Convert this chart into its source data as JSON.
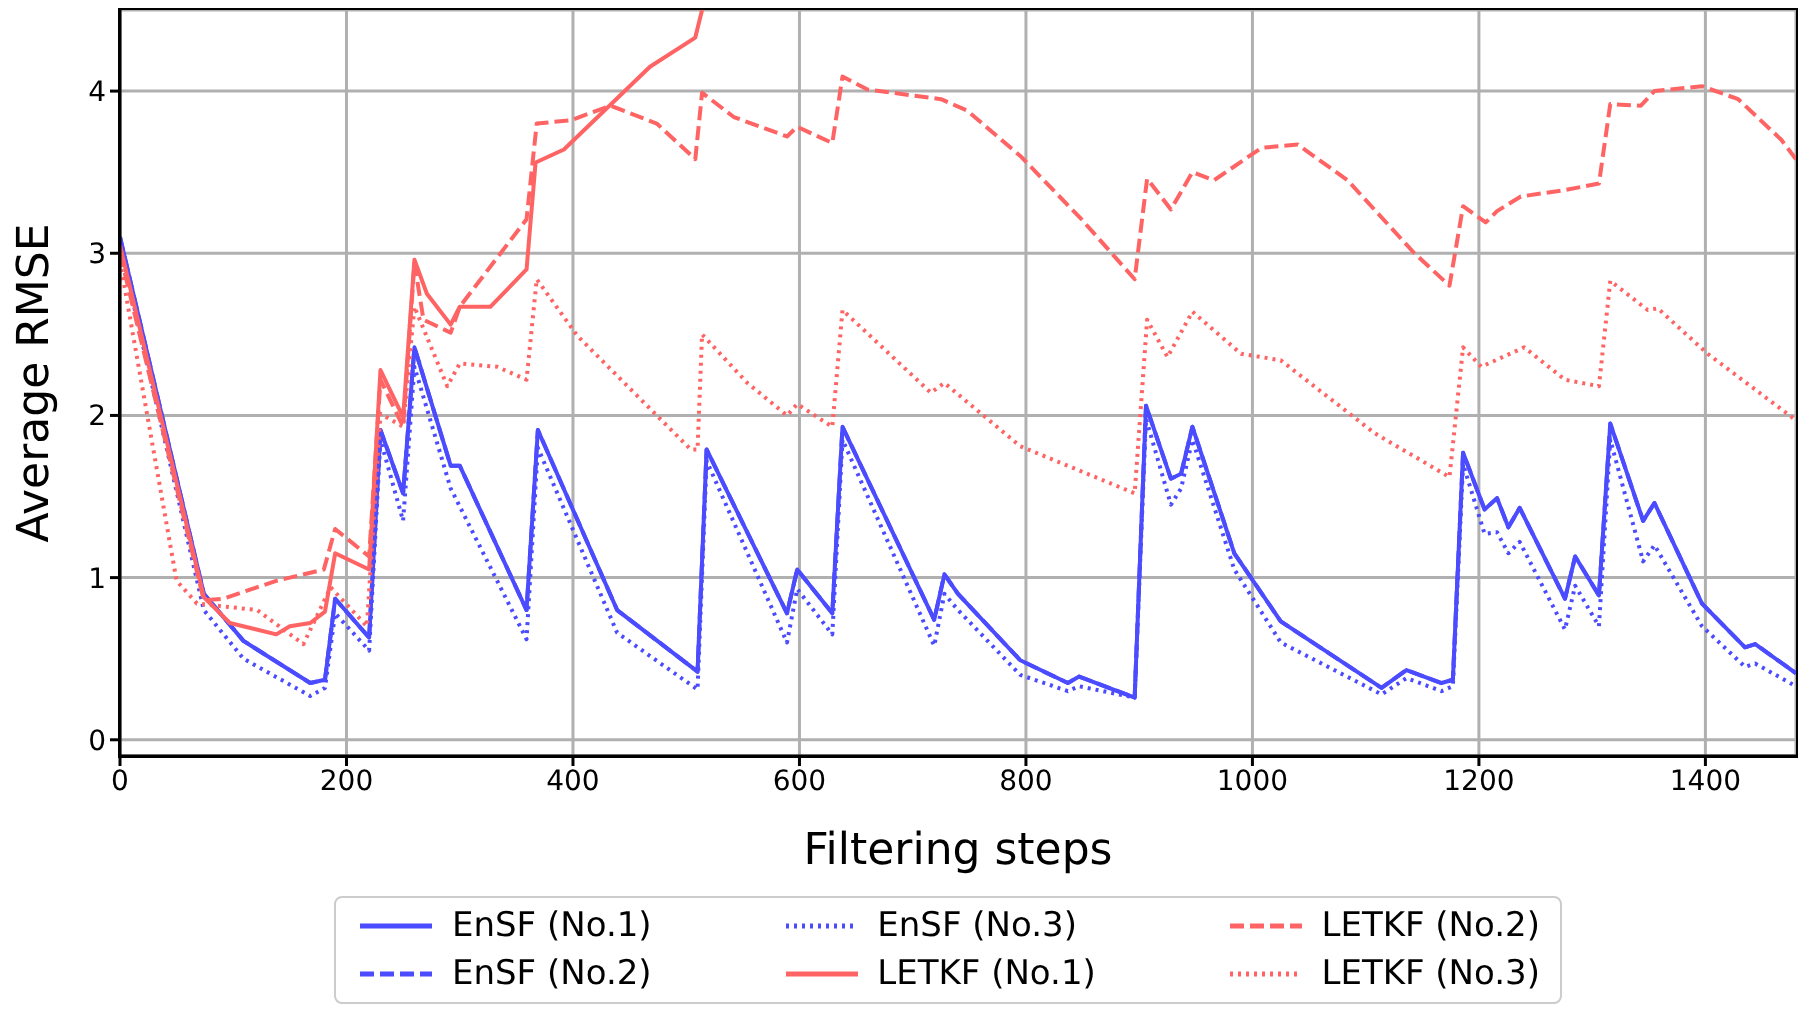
{
  "chart_data": {
    "type": "line",
    "xlabel": "Filtering steps",
    "ylabel": "Average RMSE",
    "xlim": [
      0,
      1480
    ],
    "xticks": [
      0,
      200,
      400,
      600,
      800,
      1000,
      1200,
      1400
    ],
    "ylim": [
      -0.1,
      4.5
    ],
    "yticks": [
      0,
      1,
      2,
      3,
      4
    ],
    "grid": true,
    "legend": "bottom",
    "marker": "none",
    "series": [
      {
        "name": "EnSF (No.1)",
        "color": "#4b4bff",
        "line_style": "solid",
        "x": [
          0,
          74,
          109,
          168,
          181,
          190,
          220,
          230,
          250,
          260,
          292,
          300,
          359,
          369,
          439,
          510,
          518,
          589,
          598,
          629,
          638,
          719,
          728,
          740,
          795,
          837,
          847,
          896,
          906,
          928,
          937,
          947,
          984,
          1025,
          1114,
          1136,
          1167,
          1177,
          1186,
          1205,
          1216,
          1226,
          1236,
          1276,
          1285,
          1306,
          1316,
          1345,
          1355,
          1397,
          1435,
          1444,
          1480
        ],
        "values": [
          3.1,
          0.9,
          0.61,
          0.35,
          0.37,
          0.87,
          0.63,
          1.91,
          1.52,
          2.42,
          1.69,
          1.69,
          0.8,
          1.91,
          0.8,
          0.42,
          1.79,
          0.78,
          1.05,
          0.78,
          1.93,
          0.74,
          1.02,
          0.9,
          0.49,
          0.35,
          0.39,
          0.26,
          2.06,
          1.61,
          1.64,
          1.93,
          1.15,
          0.73,
          0.32,
          0.43,
          0.35,
          0.37,
          1.77,
          1.42,
          1.49,
          1.31,
          1.43,
          0.87,
          1.13,
          0.89,
          1.95,
          1.35,
          1.46,
          0.84,
          0.57,
          0.59,
          0.41
        ]
      },
      {
        "name": "EnSF (No.2)",
        "color": "#4b4bff",
        "line_style": "dashed",
        "x": [
          0,
          74,
          109,
          168,
          181,
          190,
          220,
          230,
          250,
          260,
          292,
          300,
          359,
          369,
          439,
          510,
          518,
          589,
          598,
          629,
          638,
          719,
          728,
          740,
          795,
          837,
          847,
          896,
          906,
          928,
          937,
          947,
          984,
          1025,
          1114,
          1136,
          1167,
          1177,
          1186,
          1205,
          1216,
          1226,
          1236,
          1276,
          1285,
          1306,
          1316,
          1345,
          1355,
          1397,
          1435,
          1444,
          1480
        ],
        "values": [
          3.1,
          0.9,
          0.61,
          0.35,
          0.37,
          0.87,
          0.63,
          1.91,
          1.52,
          2.42,
          1.69,
          1.69,
          0.8,
          1.91,
          0.8,
          0.42,
          1.79,
          0.78,
          1.05,
          0.78,
          1.93,
          0.74,
          1.02,
          0.9,
          0.49,
          0.35,
          0.39,
          0.26,
          2.06,
          1.61,
          1.64,
          1.93,
          1.15,
          0.73,
          0.32,
          0.43,
          0.35,
          0.37,
          1.77,
          1.42,
          1.49,
          1.31,
          1.43,
          0.87,
          1.13,
          0.89,
          1.95,
          1.35,
          1.46,
          0.84,
          0.57,
          0.59,
          0.41
        ]
      },
      {
        "name": "EnSF (No.3)",
        "color": "#4b4bff",
        "line_style": "dotted",
        "x": [
          0,
          74,
          109,
          168,
          181,
          190,
          220,
          230,
          250,
          260,
          292,
          359,
          369,
          439,
          510,
          518,
          589,
          598,
          629,
          638,
          719,
          728,
          740,
          795,
          837,
          847,
          896,
          906,
          928,
          937,
          947,
          984,
          1025,
          1114,
          1136,
          1167,
          1177,
          1186,
          1205,
          1216,
          1226,
          1236,
          1276,
          1285,
          1306,
          1316,
          1345,
          1355,
          1397,
          1435,
          1444,
          1480
        ],
        "values": [
          3.05,
          0.8,
          0.5,
          0.27,
          0.32,
          0.78,
          0.55,
          1.85,
          1.35,
          2.3,
          1.55,
          0.62,
          1.8,
          0.66,
          0.31,
          1.72,
          0.6,
          0.93,
          0.65,
          1.85,
          0.58,
          0.9,
          0.8,
          0.4,
          0.3,
          0.33,
          0.26,
          1.98,
          1.45,
          1.55,
          1.85,
          1.05,
          0.6,
          0.28,
          0.38,
          0.3,
          0.33,
          1.7,
          1.27,
          1.28,
          1.15,
          1.22,
          0.68,
          0.95,
          0.7,
          1.85,
          1.1,
          1.2,
          0.7,
          0.45,
          0.47,
          0.33
        ]
      },
      {
        "name": "LETKF (No.1)",
        "color": "#ff6464",
        "line_style": "solid",
        "x": [
          0,
          74,
          97,
          138,
          150,
          168,
          181,
          190,
          220,
          230,
          250,
          260,
          271,
          292,
          300,
          327,
          359,
          367,
          392,
          468,
          508,
          514
        ],
        "values": [
          3.05,
          0.88,
          0.72,
          0.65,
          0.7,
          0.72,
          0.79,
          1.15,
          1.05,
          2.28,
          1.99,
          2.96,
          2.75,
          2.56,
          2.67,
          2.67,
          2.9,
          3.56,
          3.64,
          4.15,
          4.33,
          4.5
        ]
      },
      {
        "name": "LETKF (No.2)",
        "color": "#ff6464",
        "line_style": "dashed",
        "x": [
          0,
          74,
          91,
          138,
          180,
          190,
          220,
          230,
          250,
          260,
          268,
          292,
          300,
          359,
          368,
          398,
          433,
          474,
          508,
          514,
          542,
          589,
          598,
          629,
          638,
          660,
          725,
          748,
          795,
          849,
          896,
          907,
          928,
          947,
          966,
          1008,
          1040,
          1084,
          1143,
          1174,
          1186,
          1206,
          1216,
          1237,
          1276,
          1306,
          1316,
          1343,
          1355,
          1397,
          1429,
          1467,
          1480
        ],
        "values": [
          3.0,
          0.86,
          0.87,
          0.98,
          1.05,
          1.3,
          1.13,
          2.22,
          1.93,
          2.94,
          2.59,
          2.51,
          2.67,
          3.21,
          3.8,
          3.82,
          3.91,
          3.8,
          3.58,
          3.99,
          3.84,
          3.72,
          3.78,
          3.68,
          4.09,
          4.01,
          3.95,
          3.88,
          3.6,
          3.21,
          2.84,
          3.46,
          3.27,
          3.5,
          3.45,
          3.65,
          3.67,
          3.45,
          3.0,
          2.8,
          3.29,
          3.19,
          3.26,
          3.35,
          3.39,
          3.43,
          3.92,
          3.91,
          4.0,
          4.03,
          3.95,
          3.7,
          3.58
        ]
      },
      {
        "name": "LETKF (No.3)",
        "color": "#ff6464",
        "line_style": "dotted",
        "x": [
          0,
          50,
          68,
          121,
          162,
          186,
          218,
          230,
          250,
          260,
          289,
          300,
          333,
          359,
          368,
          404,
          504,
          510,
          514,
          554,
          589,
          598,
          629,
          638,
          716,
          728,
          795,
          896,
          907,
          925,
          947,
          990,
          1025,
          1108,
          1174,
          1186,
          1202,
          1240,
          1276,
          1306,
          1316,
          1349,
          1358,
          1402,
          1480
        ],
        "values": [
          2.95,
          0.98,
          0.84,
          0.8,
          0.59,
          0.94,
          0.7,
          2.01,
          1.93,
          2.67,
          2.18,
          2.32,
          2.3,
          2.22,
          2.84,
          2.49,
          1.79,
          1.79,
          2.5,
          2.2,
          2.0,
          2.07,
          1.93,
          2.65,
          2.14,
          2.2,
          1.81,
          1.52,
          2.59,
          2.36,
          2.64,
          2.38,
          2.34,
          1.89,
          1.62,
          2.42,
          2.3,
          2.42,
          2.22,
          2.18,
          2.83,
          2.65,
          2.66,
          2.38,
          1.97
        ]
      }
    ]
  }
}
